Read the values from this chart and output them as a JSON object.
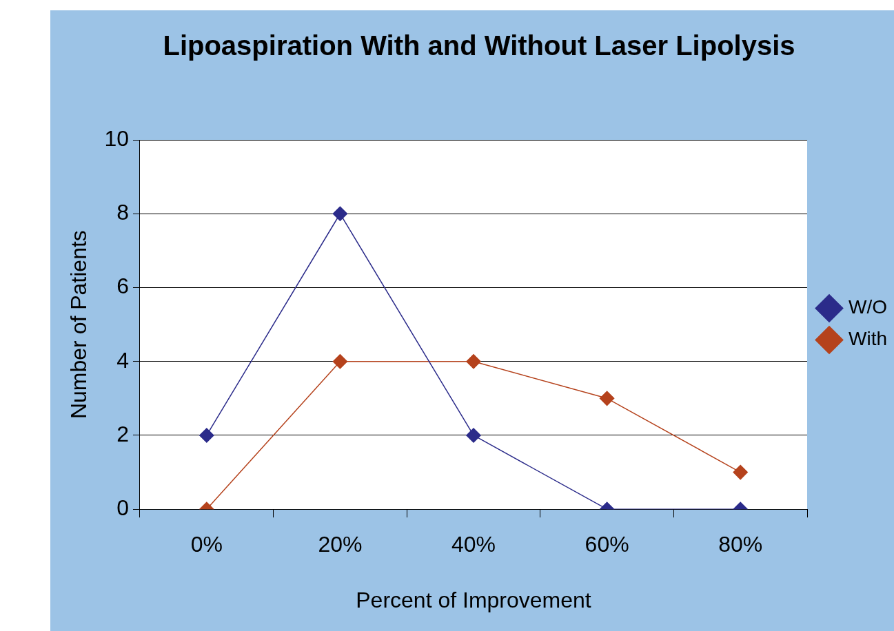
{
  "chart_data": {
    "type": "line",
    "title": "Lipoaspiration With and Without Laser Lipolysis",
    "xlabel": "Percent of Improvement",
    "ylabel": "Number of Patients",
    "categories": [
      "0%",
      "20%",
      "40%",
      "60%",
      "80%"
    ],
    "series": [
      {
        "name": "W/O",
        "color": "#2b2b8a",
        "values": [
          2,
          8,
          2,
          0,
          0
        ]
      },
      {
        "name": "With",
        "color": "#b5421c",
        "values": [
          0,
          4,
          4,
          3,
          1
        ]
      }
    ],
    "ylim": [
      0,
      10
    ],
    "yticks": [
      0,
      2,
      4,
      6,
      8,
      10
    ],
    "grid": "y",
    "legend": "right",
    "marker": "diamond",
    "line_style": "solid"
  }
}
